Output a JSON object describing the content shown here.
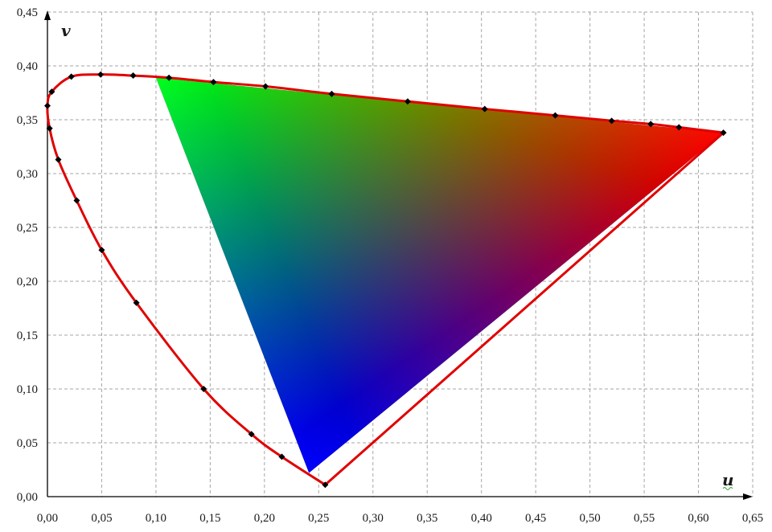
{
  "chart_data": {
    "type": "scatter",
    "title": "",
    "xlabel": "u",
    "ylabel": "v",
    "xlim": [
      0,
      0.65
    ],
    "ylim": [
      0,
      0.45
    ],
    "x_ticks": [
      "0,00",
      "0,05",
      "0,10",
      "0,15",
      "0,20",
      "0,25",
      "0,30",
      "0,35",
      "0,40",
      "0,45",
      "0,50",
      "0,55",
      "0,60",
      "0,65"
    ],
    "y_ticks": [
      "0,00",
      "0,05",
      "0,10",
      "0,15",
      "0,20",
      "0,25",
      "0,30",
      "0,35",
      "0,40",
      "0,45"
    ],
    "grid": true,
    "legend": "none",
    "colors": {
      "locus": "#e00000",
      "markers": "#000000",
      "gamut_red": "#ff0000",
      "gamut_green": "#00ff00",
      "gamut_blue": "#0000ff",
      "grid": "#a6a6a6"
    },
    "series": [
      {
        "kind": "spectral-locus-markers",
        "points": [
          [
            0.256,
            0.011
          ],
          [
            0.216,
            0.037
          ],
          [
            0.188,
            0.058
          ],
          [
            0.144,
            0.1
          ],
          [
            0.082,
            0.18
          ],
          [
            0.05,
            0.229
          ],
          [
            0.027,
            0.275
          ],
          [
            0.01,
            0.313
          ],
          [
            0.002,
            0.342
          ],
          [
            0.0,
            0.363
          ],
          [
            0.004,
            0.376
          ],
          [
            0.022,
            0.39
          ],
          [
            0.049,
            0.392
          ],
          [
            0.079,
            0.391
          ],
          [
            0.112,
            0.389
          ],
          [
            0.153,
            0.385
          ],
          [
            0.201,
            0.381
          ],
          [
            0.262,
            0.374
          ],
          [
            0.332,
            0.367
          ],
          [
            0.403,
            0.36
          ],
          [
            0.468,
            0.354
          ],
          [
            0.52,
            0.349
          ],
          [
            0.556,
            0.346
          ],
          [
            0.582,
            0.343
          ],
          [
            0.623,
            0.338
          ]
        ]
      },
      {
        "kind": "gamut-triangle",
        "vertices": {
          "red": [
            0.623,
            0.338
          ],
          "green": [
            0.1,
            0.389
          ],
          "blue": [
            0.241,
            0.022
          ]
        }
      }
    ]
  }
}
